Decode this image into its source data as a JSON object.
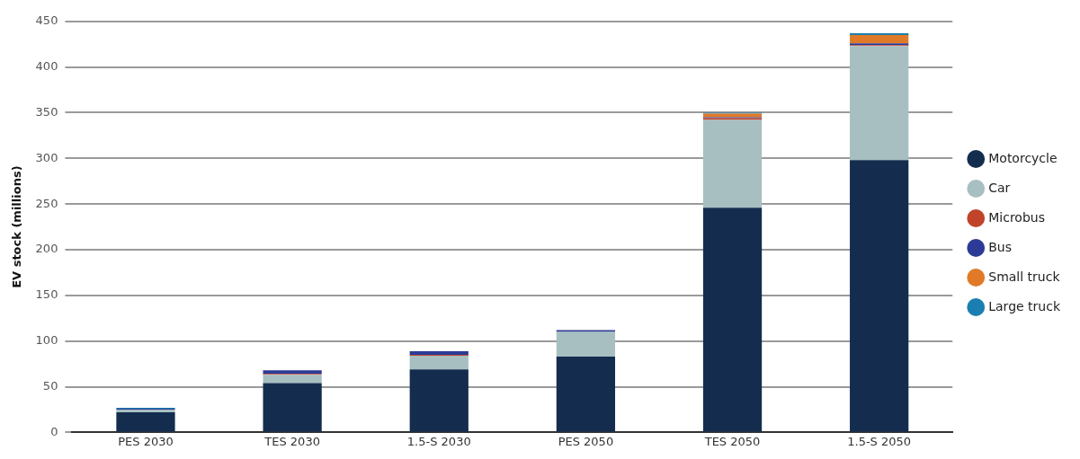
{
  "chart_data": {
    "type": "bar",
    "stacked": true,
    "ylabel": "EV stock (millions)",
    "categories": [
      "PES 2030",
      "TES 2030",
      "1.5-S 2030",
      "PES 2050",
      "TES 2050",
      "1.5-S 2050"
    ],
    "series": [
      {
        "name": "Motorcycle",
        "color": "#142d4f",
        "values": [
          22,
          54,
          69,
          83,
          246,
          298
        ]
      },
      {
        "name": "Car",
        "color": "#a7bfc0",
        "values": [
          3,
          9,
          15,
          27,
          96,
          125
        ]
      },
      {
        "name": "Microbus",
        "color": "#c0432a",
        "values": [
          0,
          1,
          1,
          0,
          2,
          1
        ]
      },
      {
        "name": "Bus",
        "color": "#2c3b96",
        "values": [
          1,
          4,
          4,
          2,
          1,
          2
        ]
      },
      {
        "name": "Small truck",
        "color": "#e07a28",
        "values": [
          0,
          0,
          0,
          0,
          4,
          9
        ]
      },
      {
        "name": "Large truck",
        "color": "#1a7fb0",
        "values": [
          1,
          0,
          0,
          0,
          1,
          2
        ]
      }
    ],
    "ylim": [
      0,
      450
    ],
    "yticks": [
      0,
      50,
      100,
      150,
      200,
      250,
      300,
      350,
      400,
      450
    ],
    "grid": "y",
    "legend": "right"
  }
}
